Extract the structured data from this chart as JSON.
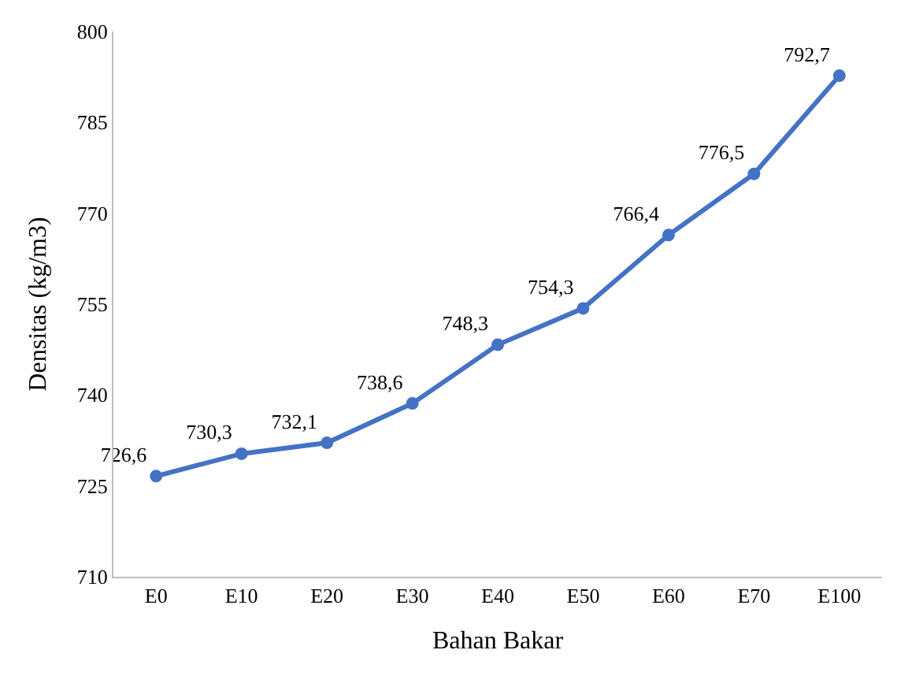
{
  "chart_data": {
    "type": "line",
    "xlabel": "Bahan Bakar",
    "ylabel": "Densitas (kg/m3)",
    "categories": [
      "E0",
      "E10",
      "E20",
      "E30",
      "E40",
      "E50",
      "E60",
      "E70",
      "E100"
    ],
    "series": [
      {
        "color": "#4472c4",
        "values": [
          726.6,
          730.3,
          732.1,
          738.6,
          748.3,
          754.3,
          766.4,
          776.5,
          792.7
        ],
        "value_labels": [
          "726,6",
          "730,3",
          "732,1",
          "738,6",
          "748,3",
          "754,3",
          "766,4",
          "776,5",
          "792,7"
        ]
      }
    ],
    "ylim": [
      710,
      800
    ],
    "yticks": [
      710,
      725,
      740,
      755,
      770,
      785,
      800
    ],
    "legend": false,
    "marker": "circle",
    "line_style": "solid"
  }
}
